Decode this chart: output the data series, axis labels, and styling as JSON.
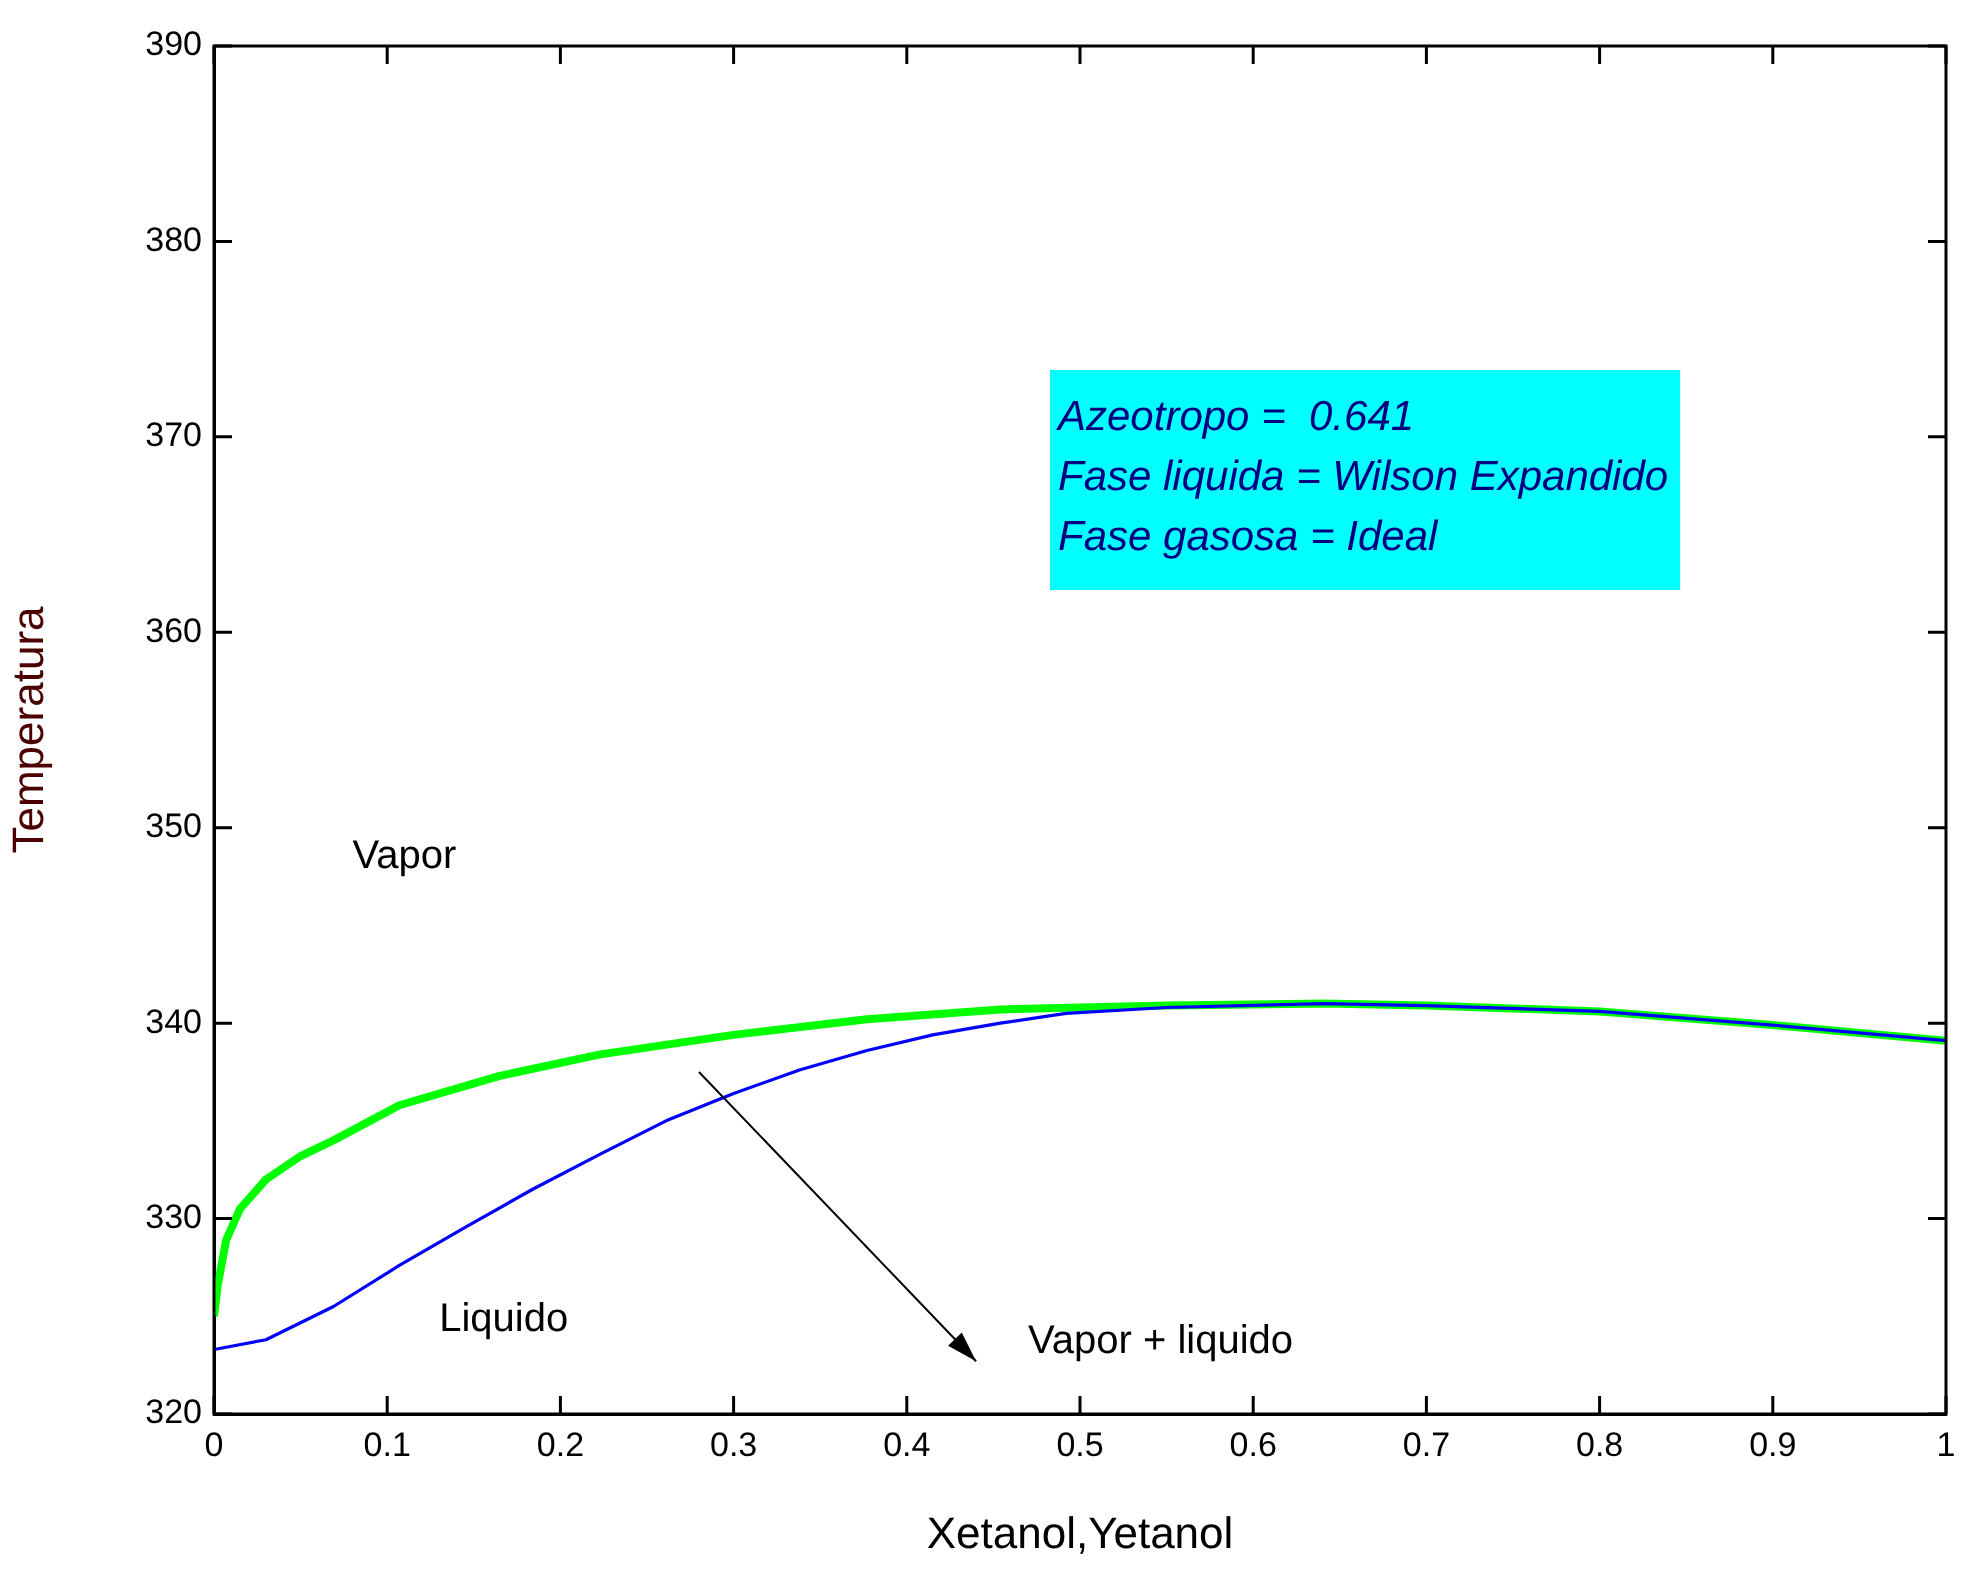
{
  "chart_data": {
    "type": "line",
    "xlabel": "Xetanol,Yetanol",
    "ylabel": "Temperatura",
    "xlim": [
      0,
      1
    ],
    "ylim": [
      320,
      390
    ],
    "xticks": [
      0,
      0.1,
      0.2,
      0.3,
      0.4,
      0.5,
      0.6,
      0.7,
      0.8,
      0.9,
      1
    ],
    "yticks": [
      320,
      330,
      340,
      350,
      360,
      370,
      380,
      390
    ],
    "grid": false,
    "legend": false,
    "marker": "none",
    "line_style": "solid",
    "series": [
      {
        "color": "#00ff00",
        "x": [
          0,
          0.002,
          0.007,
          0.015,
          0.03,
          0.05,
          0.069,
          0.107,
          0.165,
          0.223,
          0.3,
          0.377,
          0.454,
          0.5,
          0.55,
          0.641,
          0.7,
          0.8,
          0.9,
          1
        ],
        "values": [
          325,
          326.5,
          328.9,
          330.5,
          332,
          333.2,
          334,
          335.8,
          337.3,
          338.4,
          339.4,
          340.2,
          340.7,
          340.8,
          340.9,
          341,
          340.9,
          340.6,
          339.9,
          339.1
        ]
      },
      {
        "color": "#0000ff",
        "x": [
          0,
          0.03,
          0.069,
          0.107,
          0.146,
          0.184,
          0.223,
          0.261,
          0.3,
          0.338,
          0.377,
          0.415,
          0.454,
          0.492,
          0.55,
          0.641,
          0.7,
          0.8,
          0.9,
          1
        ],
        "values": [
          323.3,
          323.8,
          325.5,
          327.6,
          329.6,
          331.5,
          333.3,
          335,
          336.4,
          337.6,
          338.6,
          339.4,
          340,
          340.5,
          340.8,
          341,
          340.9,
          340.6,
          339.9,
          339.1
        ]
      }
    ],
    "annotations": [
      "Vapor",
      "Liquido",
      "Vapor + liquido",
      "Azeotropo =  0.641",
      "Fase liquida = Wilson Expandido",
      "Fase gasosa = Ideal"
    ]
  }
}
